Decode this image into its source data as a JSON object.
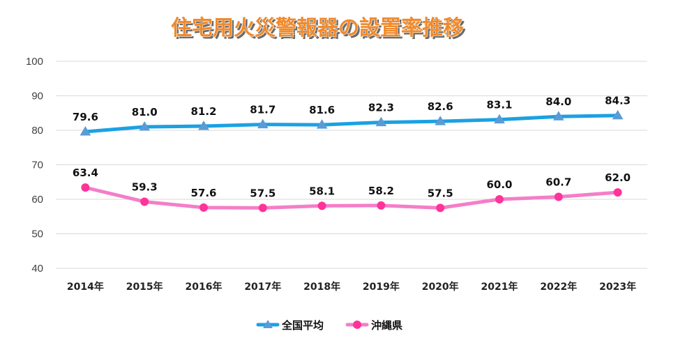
{
  "chart_data": {
    "type": "line",
    "title": "住宅用火災警報器の設置率推移",
    "categories": [
      "2014年",
      "2015年",
      "2016年",
      "2017年",
      "2018年",
      "2019年",
      "2020年",
      "2021年",
      "2022年",
      "2023年"
    ],
    "yticks": [
      "100",
      "90",
      "80",
      "70",
      "60",
      "50",
      "40"
    ],
    "ylim": [
      40,
      100
    ],
    "grid": true,
    "legend_position": "bottom",
    "series": [
      {
        "name": "全国平均",
        "color": "#1ba1e2",
        "marker": "triangle",
        "values": [
          79.6,
          81.0,
          81.2,
          81.7,
          81.6,
          82.3,
          82.6,
          83.1,
          84.0,
          84.3
        ],
        "labels": [
          "79.6",
          "81.0",
          "81.2",
          "81.7",
          "81.6",
          "82.3",
          "82.6",
          "83.1",
          "84.0",
          "84.3"
        ]
      },
      {
        "name": "沖縄県",
        "color": "#f47ec8",
        "marker": "circle",
        "values": [
          63.4,
          59.3,
          57.6,
          57.5,
          58.1,
          58.2,
          57.5,
          60.0,
          60.7,
          62.0
        ],
        "labels": [
          "63.4",
          "59.3",
          "57.6",
          "57.5",
          "58.1",
          "58.2",
          "57.5",
          "60.0",
          "60.7",
          "62.0"
        ]
      }
    ]
  }
}
